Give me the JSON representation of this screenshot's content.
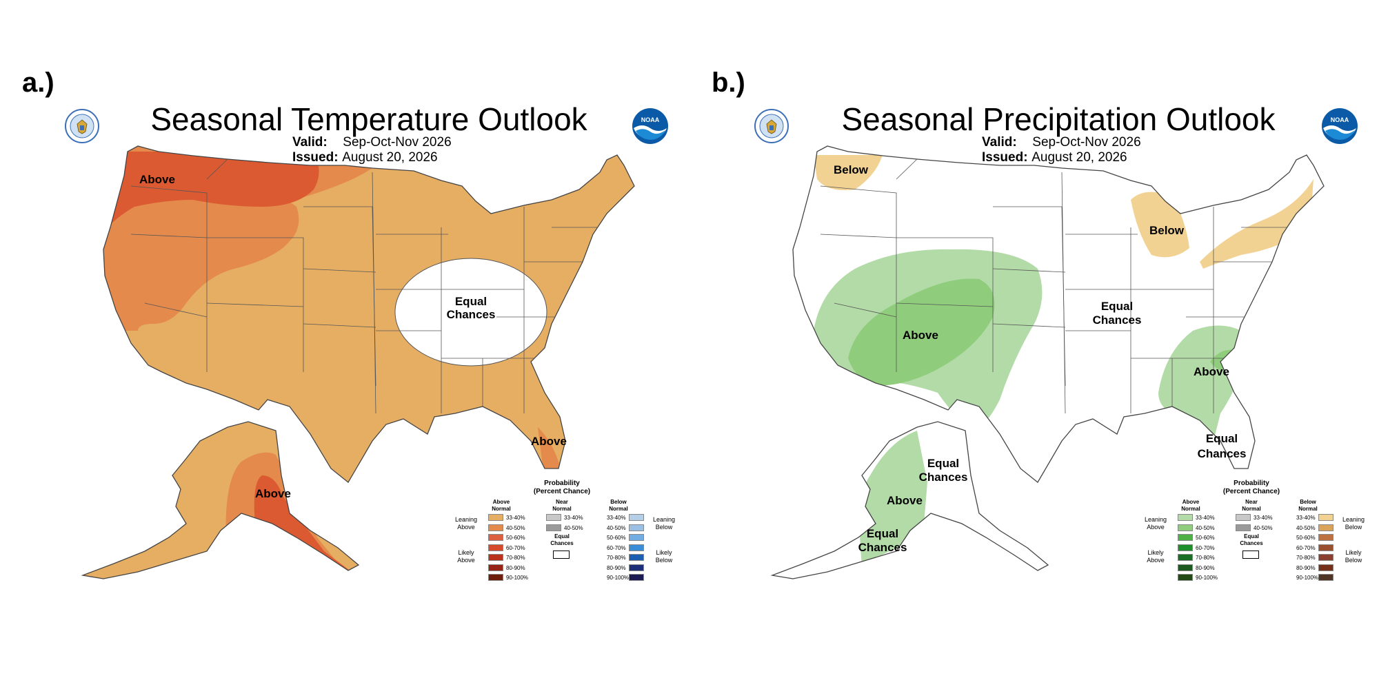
{
  "panel_a": {
    "label": "a.)",
    "title": "Seasonal Temperature Outlook",
    "valid_label": "Valid:",
    "valid_value": "Sep-Oct-Nov 2026",
    "issued_label": "Issued:",
    "issued_value": "August 20, 2026",
    "regions": {
      "nw_above": "Above",
      "equal_1": "Equal",
      "equal_2": "Chances",
      "fl_above": "Above",
      "ak_above": "Above"
    }
  },
  "panel_b": {
    "label": "b.)",
    "title": "Seasonal Precipitation Outlook",
    "valid_label": "Valid:",
    "valid_value": "Sep-Oct-Nov 2026",
    "issued_label": "Issued:",
    "issued_value": "August 20, 2026",
    "regions": {
      "nw_below": "Below",
      "gl_below": "Below",
      "sw_above": "Above",
      "se_above": "Above",
      "ec_mid_1": "Equal",
      "ec_mid_2": "Chances",
      "ec_fl_1": "Equal",
      "ec_fl_2": "Chances",
      "ec_ak_1": "Equal",
      "ec_ak_2": "Chances",
      "ak_above": "Above",
      "ec_aksw_1": "Equal",
      "ec_aksw_2": "Chances"
    }
  },
  "legend_temp": {
    "title_1": "Probability",
    "title_2": "(Percent Chance)",
    "above_head_1": "Above",
    "above_head_2": "Normal",
    "near_head_1": "Near",
    "near_head_2": "Normal",
    "below_head_1": "Below",
    "below_head_2": "Normal",
    "ranges": [
      "33-40%",
      "40-50%",
      "50-60%",
      "60-70%",
      "70-80%",
      "80-90%",
      "90-100%"
    ],
    "near_ranges": [
      "33-40%",
      "40-50%"
    ],
    "leaning_above_1": "Leaning",
    "leaning_above_2": "Above",
    "likely_above_1": "Likely",
    "likely_above_2": "Above",
    "leaning_below_1": "Leaning",
    "leaning_below_2": "Below",
    "likely_below_1": "Likely",
    "likely_below_2": "Below",
    "equal_1": "Equal",
    "equal_2": "Chances",
    "above_colors": [
      "#e6ae63",
      "#e38a4c",
      "#dc6040",
      "#d44a2a",
      "#b8321c",
      "#962414",
      "#6e1e0c"
    ],
    "near_colors": [
      "#c8c8c8",
      "#9a9a9a"
    ],
    "below_colors": [
      "#b6cfe8",
      "#9cbfe4",
      "#72ace2",
      "#3a8ed8",
      "#1c5fb0",
      "#1c2f78",
      "#1c1c52"
    ]
  },
  "legend_precip": {
    "title_1": "Probability",
    "title_2": "(Percent Chance)",
    "above_head_1": "Above",
    "above_head_2": "Normal",
    "near_head_1": "Near",
    "near_head_2": "Normal",
    "below_head_1": "Below",
    "below_head_2": "Normal",
    "ranges": [
      "33-40%",
      "40-50%",
      "50-60%",
      "60-70%",
      "70-80%",
      "80-90%",
      "90-100%"
    ],
    "near_ranges": [
      "33-40%",
      "40-50%"
    ],
    "leaning_above_1": "Leaning",
    "leaning_above_2": "Above",
    "likely_above_1": "Likely",
    "likely_above_2": "Above",
    "leaning_below_1": "Leaning",
    "leaning_below_2": "Below",
    "likely_below_1": "Likely",
    "likely_below_2": "Below",
    "equal_1": "Equal",
    "equal_2": "Chances",
    "above_colors": [
      "#b3dba8",
      "#8fcd7c",
      "#4fb046",
      "#1e8e2c",
      "#1a6e24",
      "#1c5a1e",
      "#234a14"
    ],
    "near_colors": [
      "#c8c8c8",
      "#9a9a9a"
    ],
    "below_colors": [
      "#f2d293",
      "#d9a35a",
      "#bd7040",
      "#9a5030",
      "#8a4030",
      "#743018",
      "#4e3528"
    ]
  },
  "colors": {
    "temp_lean": "#e6ae63",
    "temp_40": "#e38a4c",
    "temp_50": "#dc5a32",
    "precip_lean": "#b3dba8",
    "precip_40": "#8fcd7c",
    "dry_lean": "#f2d293"
  }
}
